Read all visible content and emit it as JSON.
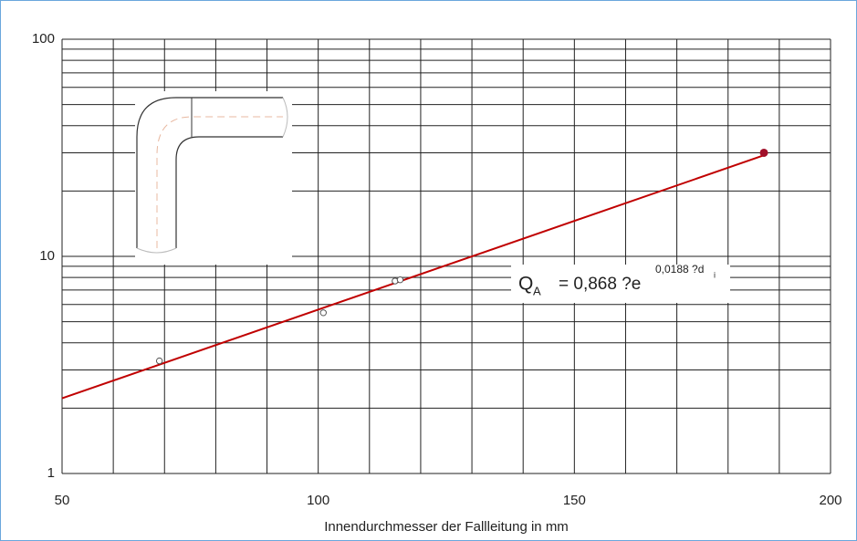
{
  "chart_data": {
    "type": "scatter",
    "xlabel": "Innendurchmesser der Fallleitung in mm",
    "xlim": [
      50,
      200
    ],
    "xticks": [
      50,
      100,
      150,
      200
    ],
    "xminor": [
      60,
      70,
      80,
      90,
      110,
      120,
      130,
      140,
      160,
      170,
      180,
      190
    ],
    "ylim": [
      1,
      100
    ],
    "yticks": [
      1,
      10,
      100
    ],
    "yminor": [
      2,
      3,
      4,
      5,
      6,
      7,
      8,
      9,
      20,
      30,
      40,
      50,
      60,
      70,
      80,
      90
    ],
    "log_y": true,
    "grid": true,
    "series": [
      {
        "color": "#c00000",
        "kind": "line",
        "x": [
          50,
          187
        ],
        "values": [
          2.22,
          29.2
        ]
      },
      {
        "color": "#555555",
        "kind": "open",
        "x": [
          69,
          101,
          115,
          116
        ],
        "values": [
          3.3,
          5.5,
          7.7,
          7.8
        ]
      },
      {
        "color": "#a0102a",
        "kind": "filled",
        "x": [
          187
        ],
        "values": [
          30
        ]
      }
    ],
    "equation": {
      "q": "Q",
      "sub_a": "A",
      "main": "= 0,868 ?e",
      "exp": "0,0188 ?d",
      "sub_i": "i"
    }
  }
}
